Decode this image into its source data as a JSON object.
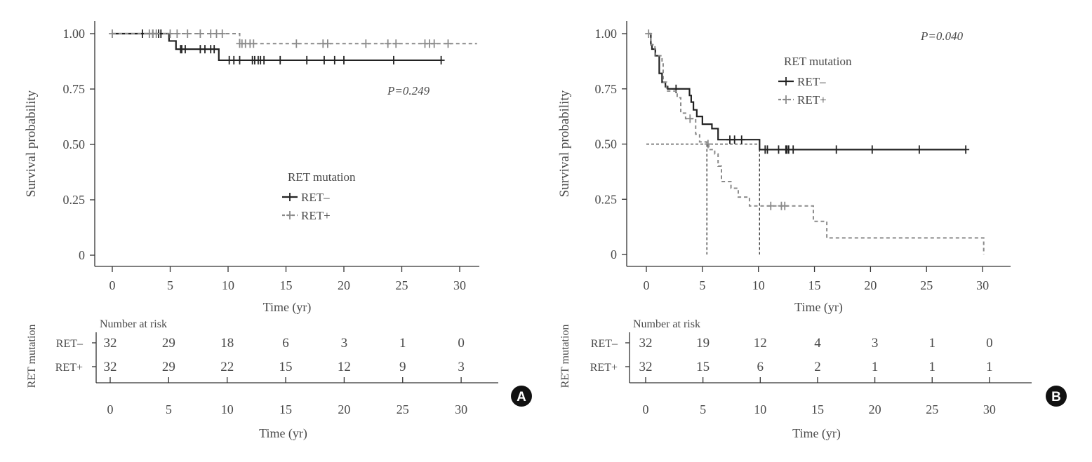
{
  "chart_data": [
    {
      "panel": "A",
      "type": "line",
      "subtype": "kaplan-meier",
      "xlabel": "Time (yr)",
      "ylabel": "Survival probability",
      "xticks": [
        "0",
        "5",
        "10",
        "15",
        "20",
        "25",
        "30"
      ],
      "yticks": [
        "0",
        "0.25",
        "0.50",
        "0.75",
        "1.00"
      ],
      "xlim": [
        0,
        32
      ],
      "ylim": [
        0,
        1
      ],
      "p_value": "P=0.249",
      "legend_title": "RET mutation",
      "legend_position": "center",
      "series": [
        {
          "name": "RET–",
          "color": "#222222",
          "dash": false,
          "steps": [
            [
              0,
              1.0
            ],
            [
              4.9,
              0.967
            ],
            [
              5.5,
              0.93
            ],
            [
              9.2,
              0.88
            ],
            [
              28.4,
              0.88
            ]
          ],
          "censored": [
            2.6,
            3.5,
            4.0,
            4.2,
            5.9,
            6.0,
            6.3,
            7.6,
            8.0,
            8.5,
            8.8,
            10.1,
            10.5,
            11.0,
            12.1,
            12.3,
            12.6,
            12.8,
            13.1,
            14.5,
            16.8,
            18.3,
            19.2,
            20.0,
            24.3,
            28.4
          ]
        },
        {
          "name": "RET+",
          "color": "#8a8a8a",
          "dash": true,
          "steps": [
            [
              0,
              1.0
            ],
            [
              11.0,
              0.955
            ],
            [
              31.5,
              0.955
            ]
          ],
          "censored": [
            0,
            3.2,
            3.5,
            3.8,
            5.0,
            5.6,
            6.5,
            7.6,
            8.5,
            9.0,
            9.5,
            11.0,
            11.2,
            11.5,
            11.9,
            12.2,
            15.9,
            18.2,
            18.6,
            21.9,
            23.8,
            24.5,
            27.0,
            27.4,
            27.8,
            29.0
          ]
        }
      ],
      "risk_table": {
        "title": "Number at risk",
        "group_label": "RET mutation",
        "times": [
          "0",
          "5",
          "10",
          "15",
          "20",
          "25",
          "30"
        ],
        "xlabel": "Time (yr)",
        "rows": [
          {
            "label": "RET–",
            "values": [
              "32",
              "29",
              "18",
              "6",
              "3",
              "1",
              "0"
            ]
          },
          {
            "label": "RET+",
            "values": [
              "32",
              "29",
              "22",
              "15",
              "12",
              "9",
              "3"
            ]
          }
        ]
      },
      "badge": "A"
    },
    {
      "panel": "B",
      "type": "line",
      "subtype": "kaplan-meier",
      "xlabel": "Time (yr)",
      "ylabel": "Survival probability",
      "xticks": [
        "0",
        "5",
        "10",
        "15",
        "20",
        "25",
        "30"
      ],
      "yticks": [
        "0",
        "0.25",
        "0.50",
        "0.75",
        "1.00"
      ],
      "xlim": [
        0,
        31
      ],
      "ylim": [
        0,
        1
      ],
      "p_value": "P=0.040",
      "legend_title": "RET mutation",
      "legend_position": "top-center",
      "median_lines": {
        "y": 0.5,
        "x": [
          5.4,
          10.1
        ]
      },
      "series": [
        {
          "name": "RET–",
          "color": "#222222",
          "dash": false,
          "steps": [
            [
              0.2,
              1.0
            ],
            [
              0.4,
              0.95
            ],
            [
              0.5,
              0.93
            ],
            [
              0.8,
              0.9
            ],
            [
              1.15,
              0.82
            ],
            [
              1.4,
              0.78
            ],
            [
              1.7,
              0.76
            ],
            [
              1.9,
              0.75
            ],
            [
              3.85,
              0.72
            ],
            [
              4.0,
              0.69
            ],
            [
              4.2,
              0.655
            ],
            [
              4.5,
              0.625
            ],
            [
              5.0,
              0.59
            ],
            [
              5.85,
              0.57
            ],
            [
              6.4,
              0.52
            ],
            [
              6.8,
              0.52
            ],
            [
              10.1,
              0.475
            ],
            [
              28.5,
              0.475
            ]
          ],
          "censored": [
            2.65,
            7.45,
            7.87,
            8.5,
            10.6,
            10.8,
            11.8,
            12.45,
            12.55,
            12.7,
            13.1,
            16.95,
            20.15,
            24.35,
            28.5
          ]
        },
        {
          "name": "RET+",
          "color": "#8a8a8a",
          "dash": true,
          "steps": [
            [
              0.2,
              1.0
            ],
            [
              0.4,
              0.95
            ],
            [
              0.77,
              0.9
            ],
            [
              1.4,
              0.87
            ],
            [
              1.5,
              0.78
            ],
            [
              1.8,
              0.74
            ],
            [
              2.75,
              0.71
            ],
            [
              3.07,
              0.64
            ],
            [
              3.5,
              0.615
            ],
            [
              4.4,
              0.545
            ],
            [
              4.75,
              0.51
            ],
            [
              5.37,
              0.5
            ],
            [
              5.57,
              0.475
            ],
            [
              6.1,
              0.455
            ],
            [
              6.4,
              0.4
            ],
            [
              6.7,
              0.33
            ],
            [
              7.55,
              0.3
            ],
            [
              8.2,
              0.26
            ],
            [
              9.2,
              0.22
            ],
            [
              14.9,
              0.15
            ],
            [
              16.1,
              0.075
            ],
            [
              30.1,
              0.075
            ],
            [
              30.1,
              0.0
            ]
          ],
          "censored": [
            0.2,
            3.9,
            5.5,
            11.1,
            12.05,
            12.35
          ]
        }
      ],
      "risk_table": {
        "title": "Number at risk",
        "group_label": "RET mutation",
        "times": [
          "0",
          "5",
          "10",
          "15",
          "20",
          "25",
          "30"
        ],
        "xlabel": "Time (yr)",
        "rows": [
          {
            "label": "RET–",
            "values": [
              "32",
              "19",
              "12",
              "4",
              "3",
              "1",
              "0"
            ]
          },
          {
            "label": "RET+",
            "values": [
              "32",
              "15",
              "6",
              "2",
              "1",
              "1",
              "1"
            ]
          }
        ]
      },
      "badge": "B"
    }
  ]
}
